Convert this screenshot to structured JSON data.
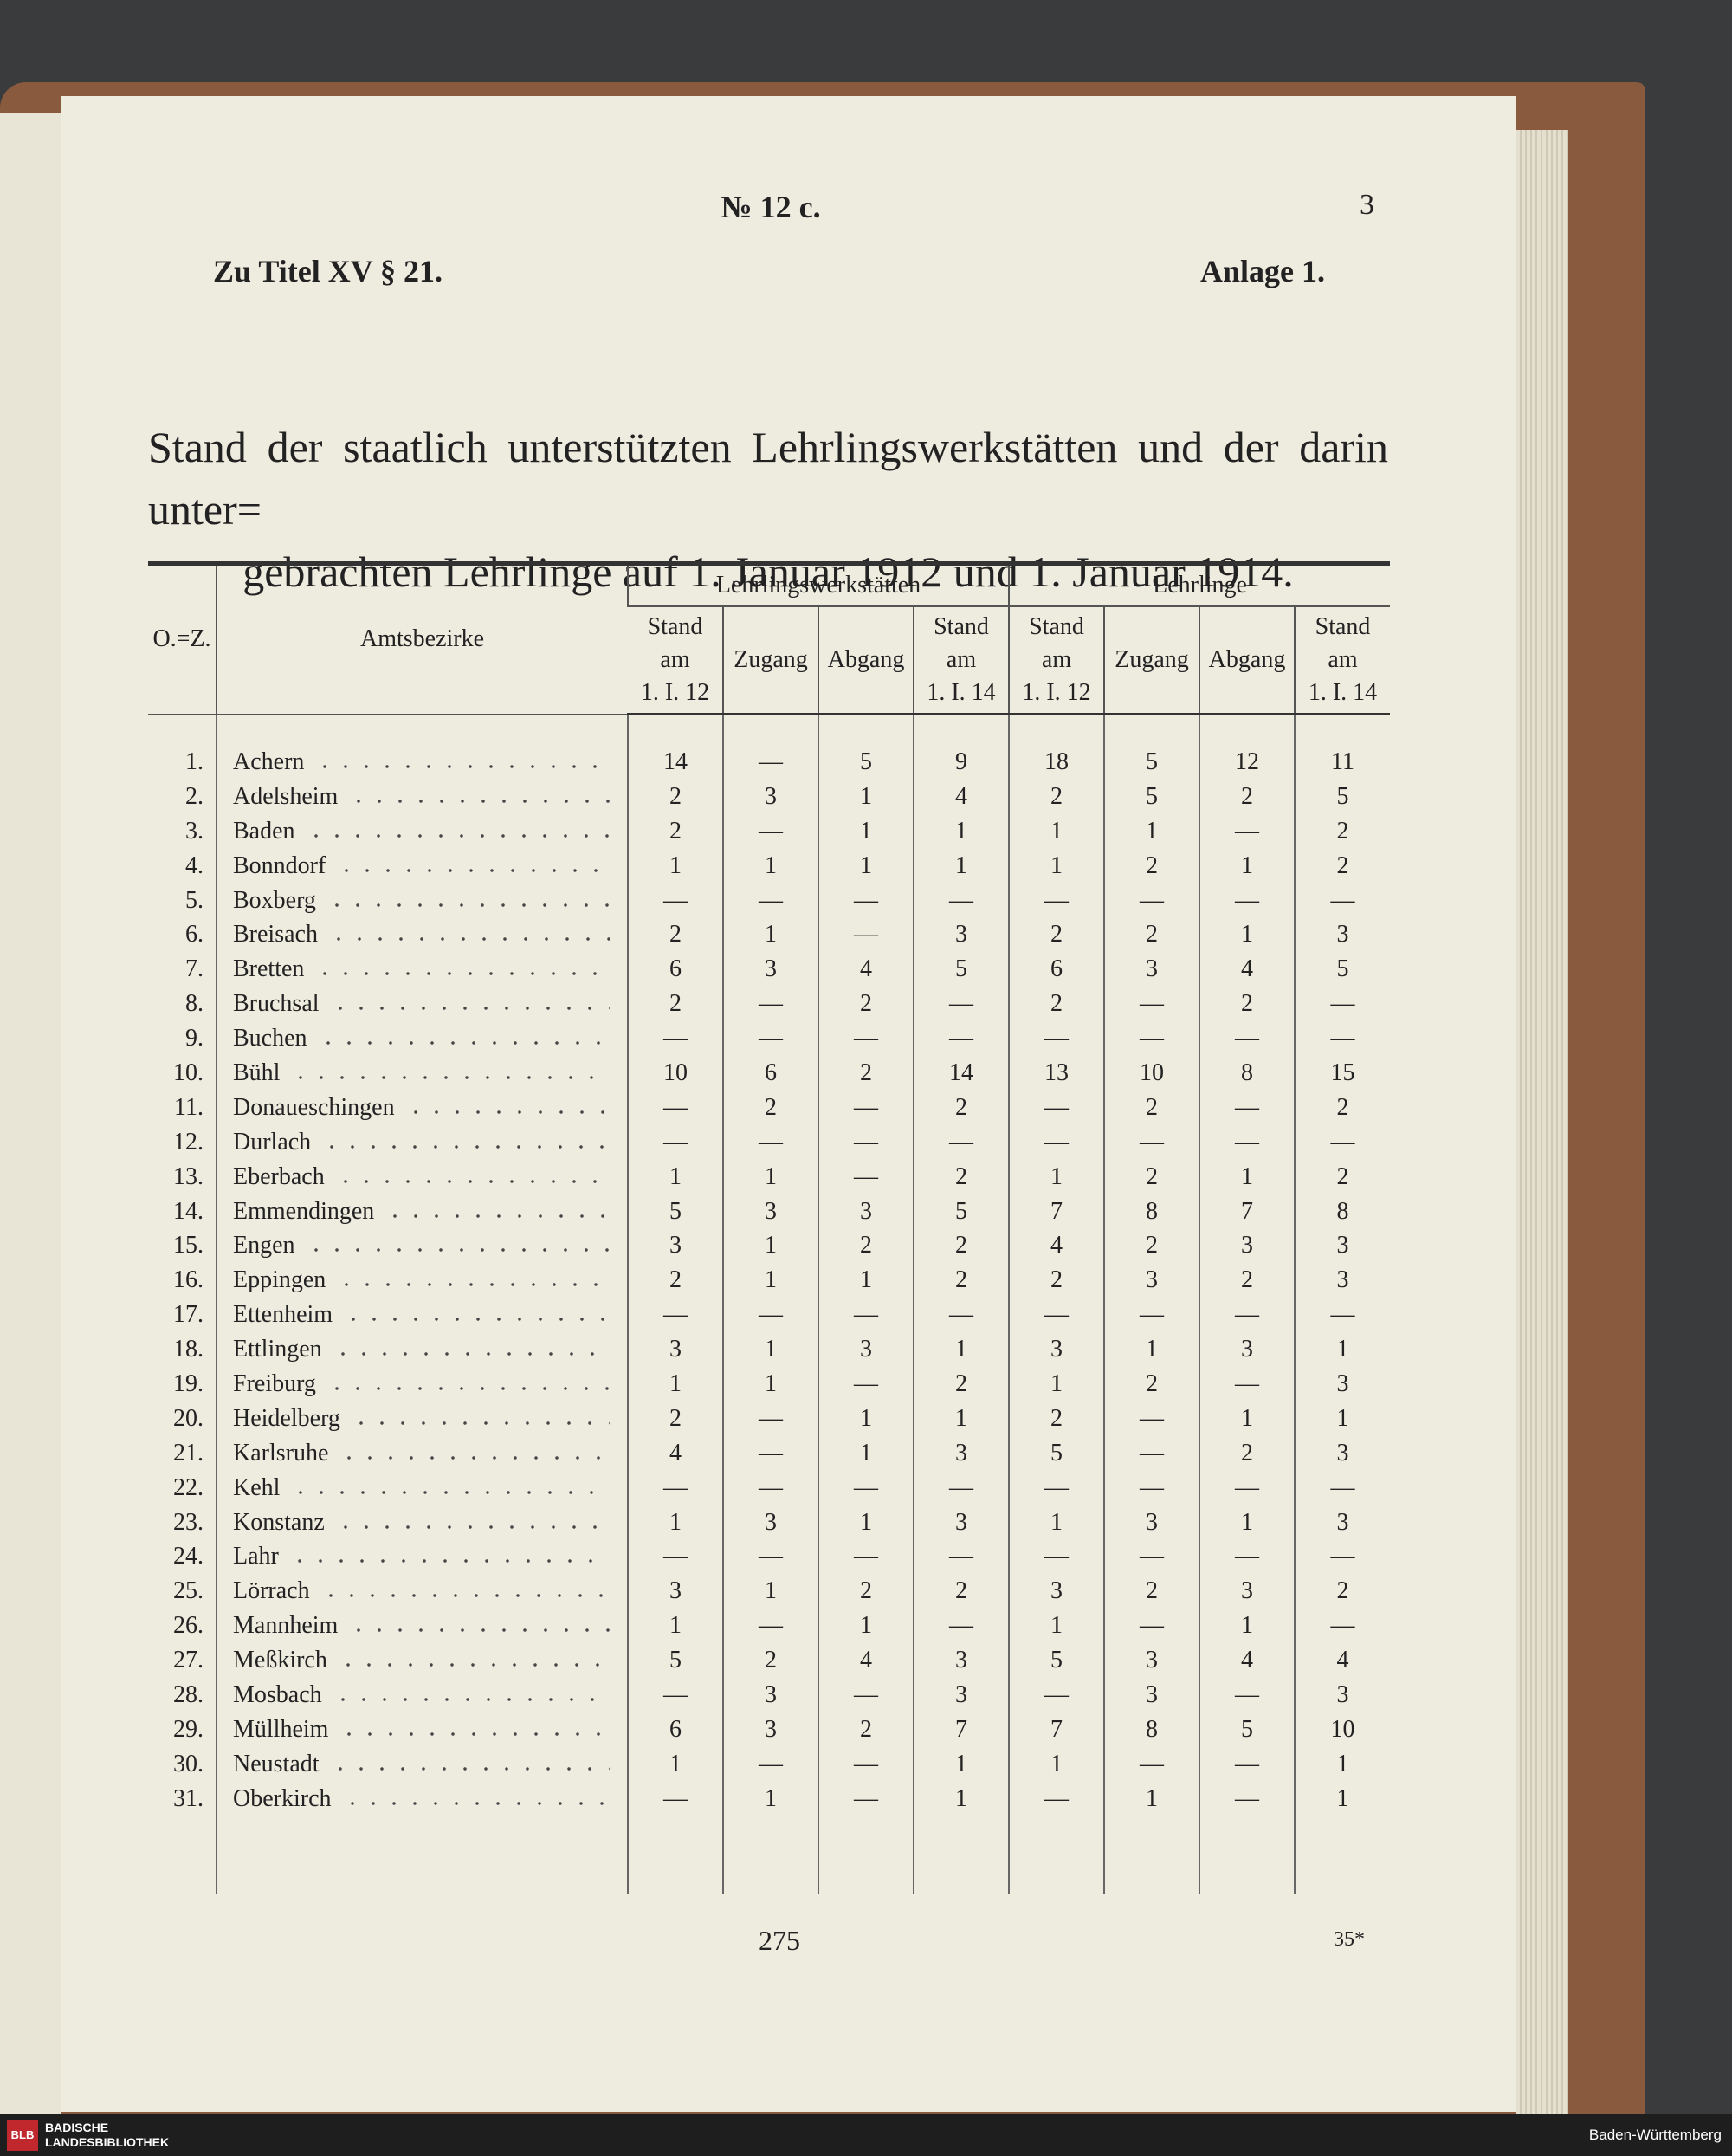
{
  "header": {
    "page_label": "№ 12 c.",
    "page_number": "3",
    "left_note": "Zu Titel XV § 21.",
    "right_note": "Anlage 1."
  },
  "title": [
    "Stand der staatlich unterstützten Lehrlingswerkstätten und der darin unter=",
    "gebrachten Lehrlinge auf 1. Januar 1912 und 1. Januar 1914."
  ],
  "table": {
    "number_header": "O.=Z.",
    "district_header": "Amtsbezirke",
    "groups": [
      "Lehrlingswerkstätten",
      "Lehrlinge"
    ],
    "subheaders": [
      [
        "Stand",
        "am",
        "1. I. 12"
      ],
      [
        "Zugang"
      ],
      [
        "Abgang"
      ],
      [
        "Stand",
        "am",
        "1. I. 14"
      ],
      [
        "Stand",
        "am",
        "1. I. 12"
      ],
      [
        "Zugang"
      ],
      [
        "Abgang"
      ],
      [
        "Stand",
        "am",
        "1. I. 14"
      ]
    ],
    "rows": [
      [
        "1.",
        "Achern",
        14,
        "—",
        5,
        9,
        18,
        5,
        12,
        11
      ],
      [
        "2.",
        "Adelsheim",
        2,
        3,
        1,
        4,
        2,
        5,
        2,
        5
      ],
      [
        "3.",
        "Baden",
        2,
        "—",
        1,
        1,
        1,
        1,
        "—",
        2
      ],
      [
        "4.",
        "Bonndorf",
        1,
        1,
        1,
        1,
        1,
        2,
        1,
        2
      ],
      [
        "5.",
        "Boxberg",
        "—",
        "—",
        "—",
        "—",
        "—",
        "—",
        "—",
        "—"
      ],
      [
        "6.",
        "Breisach",
        2,
        1,
        "—",
        3,
        2,
        2,
        1,
        3
      ],
      [
        "7.",
        "Bretten",
        6,
        3,
        4,
        5,
        6,
        3,
        4,
        5
      ],
      [
        "8.",
        "Bruchsal",
        2,
        "—",
        2,
        "—",
        2,
        "—",
        2,
        "—"
      ],
      [
        "9.",
        "Buchen",
        "—",
        "—",
        "—",
        "—",
        "—",
        "—",
        "—",
        "—"
      ],
      [
        "10.",
        "Bühl",
        10,
        6,
        2,
        14,
        13,
        10,
        8,
        15
      ],
      [
        "11.",
        "Donaueschingen",
        "—",
        2,
        "—",
        2,
        "—",
        2,
        "—",
        2
      ],
      [
        "12.",
        "Durlach",
        "—",
        "—",
        "—",
        "—",
        "—",
        "—",
        "—",
        "—"
      ],
      [
        "13.",
        "Eberbach",
        1,
        1,
        "—",
        2,
        1,
        2,
        1,
        2
      ],
      [
        "14.",
        "Emmendingen",
        5,
        3,
        3,
        5,
        7,
        8,
        7,
        8
      ],
      [
        "15.",
        "Engen",
        3,
        1,
        2,
        2,
        4,
        2,
        3,
        3
      ],
      [
        "16.",
        "Eppingen",
        2,
        1,
        1,
        2,
        2,
        3,
        2,
        3
      ],
      [
        "17.",
        "Ettenheim",
        "—",
        "—",
        "—",
        "—",
        "—",
        "—",
        "—",
        "—"
      ],
      [
        "18.",
        "Ettlingen",
        3,
        1,
        3,
        1,
        3,
        1,
        3,
        1
      ],
      [
        "19.",
        "Freiburg",
        1,
        1,
        "—",
        2,
        1,
        2,
        "—",
        3
      ],
      [
        "20.",
        "Heidelberg",
        2,
        "—",
        1,
        1,
        2,
        "—",
        1,
        1
      ],
      [
        "21.",
        "Karlsruhe",
        4,
        "—",
        1,
        3,
        5,
        "—",
        2,
        3
      ],
      [
        "22.",
        "Kehl",
        "—",
        "—",
        "—",
        "—",
        "—",
        "—",
        "—",
        "—"
      ],
      [
        "23.",
        "Konstanz",
        1,
        3,
        1,
        3,
        1,
        3,
        1,
        3
      ],
      [
        "24.",
        "Lahr",
        "—",
        "—",
        "—",
        "—",
        "—",
        "—",
        "—",
        "—"
      ],
      [
        "25.",
        "Lörrach",
        3,
        1,
        2,
        2,
        3,
        2,
        3,
        2
      ],
      [
        "26.",
        "Mannheim",
        1,
        "—",
        1,
        "—",
        1,
        "—",
        1,
        "—"
      ],
      [
        "27.",
        "Meßkirch",
        5,
        2,
        4,
        3,
        5,
        3,
        4,
        4
      ],
      [
        "28.",
        "Mosbach",
        "—",
        3,
        "—",
        3,
        "—",
        3,
        "—",
        3
      ],
      [
        "29.",
        "Müllheim",
        6,
        3,
        2,
        7,
        7,
        8,
        5,
        10
      ],
      [
        "30.",
        "Neustadt",
        1,
        "—",
        "—",
        1,
        1,
        "—",
        "—",
        1
      ],
      [
        "31.",
        "Oberkirch",
        "—",
        1,
        "—",
        1,
        "—",
        1,
        "—",
        1
      ]
    ]
  },
  "footer": {
    "page": "275",
    "signature": "35*"
  },
  "bar": {
    "logo": "BLB",
    "library": "BADISCHE LANDESBIBLIOTHEK",
    "region": "Baden-Württemberg"
  }
}
